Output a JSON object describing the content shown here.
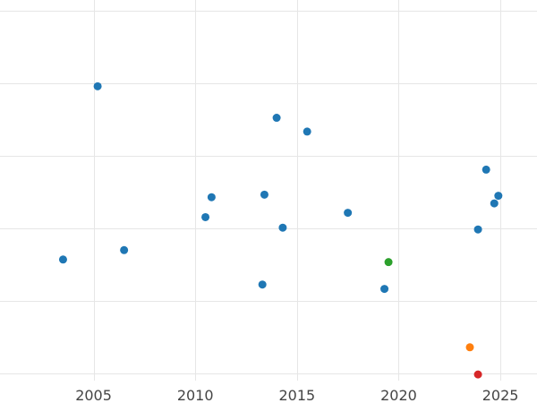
{
  "chart_data": {
    "type": "scatter",
    "title": "",
    "xlabel": "",
    "ylabel": "",
    "xlim": [
      2000.4,
      2026.8
    ],
    "ylim": [
      -2,
      103
    ],
    "x_ticks": [
      2005,
      2010,
      2015,
      2020,
      2025
    ],
    "x_tick_labels": [
      "2005",
      "2010",
      "2015",
      "2020",
      "2025"
    ],
    "y_gridlines": [
      0,
      20,
      40,
      60,
      80,
      100
    ],
    "y_tick_labels": [],
    "grid": true,
    "legend": "none",
    "points": [
      {
        "x": 2005.2,
        "y": 79.2,
        "color": "#1f77b4"
      },
      {
        "x": 2014.0,
        "y": 70.5,
        "color": "#1f77b4"
      },
      {
        "x": 2015.5,
        "y": 66.7,
        "color": "#1f77b4"
      },
      {
        "x": 2024.3,
        "y": 56.2,
        "color": "#1f77b4"
      },
      {
        "x": 2024.9,
        "y": 49.0,
        "color": "#1f77b4"
      },
      {
        "x": 2024.7,
        "y": 46.9,
        "color": "#1f77b4"
      },
      {
        "x": 2010.8,
        "y": 48.6,
        "color": "#1f77b4"
      },
      {
        "x": 2013.4,
        "y": 49.3,
        "color": "#1f77b4"
      },
      {
        "x": 2010.5,
        "y": 43.1,
        "color": "#1f77b4"
      },
      {
        "x": 2017.5,
        "y": 44.3,
        "color": "#1f77b4"
      },
      {
        "x": 2014.3,
        "y": 40.2,
        "color": "#1f77b4"
      },
      {
        "x": 2023.9,
        "y": 39.7,
        "color": "#1f77b4"
      },
      {
        "x": 2006.5,
        "y": 34.0,
        "color": "#1f77b4"
      },
      {
        "x": 2003.5,
        "y": 31.4,
        "color": "#1f77b4"
      },
      {
        "x": 2019.5,
        "y": 30.7,
        "color": "#2ca02c"
      },
      {
        "x": 2013.3,
        "y": 24.5,
        "color": "#1f77b4"
      },
      {
        "x": 2019.3,
        "y": 23.3,
        "color": "#1f77b4"
      },
      {
        "x": 2023.5,
        "y": 7.2,
        "color": "#ff7f0e"
      },
      {
        "x": 2023.9,
        "y": -0.3,
        "color": "#d62728"
      }
    ]
  }
}
